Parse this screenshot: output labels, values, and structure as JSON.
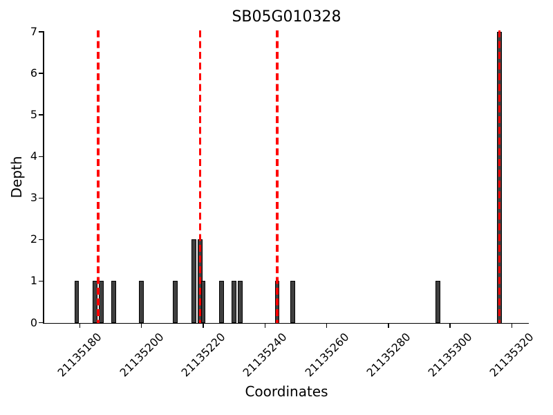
{
  "figure": {
    "title": "SB05G010328",
    "xlabel": "Coordinates",
    "ylabel": "Depth"
  },
  "chart_data": {
    "type": "bar",
    "title": "SB05G010328",
    "xlabel": "Coordinates",
    "ylabel": "Depth",
    "x": [
      21135179,
      21135185,
      21135187,
      21135191,
      21135200,
      21135211,
      21135217,
      21135219,
      21135220,
      21135226,
      21135230,
      21135232,
      21135244,
      21135249,
      21135296,
      21135316
    ],
    "values": [
      1,
      1,
      1,
      1,
      1,
      1,
      2,
      2,
      1,
      1,
      1,
      1,
      1,
      1,
      1,
      7
    ],
    "bar_width_units": 1.5,
    "bar_color": "#3f3f3f",
    "bar_edge_color": "#000000",
    "xlim": [
      21135168.5,
      21135325.5
    ],
    "ylim": [
      0,
      7
    ],
    "xticks": [
      21135180,
      21135200,
      21135220,
      21135240,
      21135260,
      21135280,
      21135300,
      21135320
    ],
    "xtick_labels": [
      "21135180",
      "21135200",
      "21135220",
      "21135240",
      "21135260",
      "21135280",
      "21135300",
      "21135320"
    ],
    "xtick_rotation": 45,
    "yticks": [
      0,
      1,
      2,
      3,
      4,
      5,
      6,
      7
    ],
    "ytick_labels": [
      "0",
      "1",
      "2",
      "3",
      "4",
      "5",
      "6",
      "7"
    ],
    "grid": false,
    "legend": null,
    "vlines": {
      "x": [
        21135186,
        21135219,
        21135244,
        21135316
      ],
      "color": "#ff0000",
      "style": "dashed",
      "span": [
        0,
        7
      ]
    }
  }
}
